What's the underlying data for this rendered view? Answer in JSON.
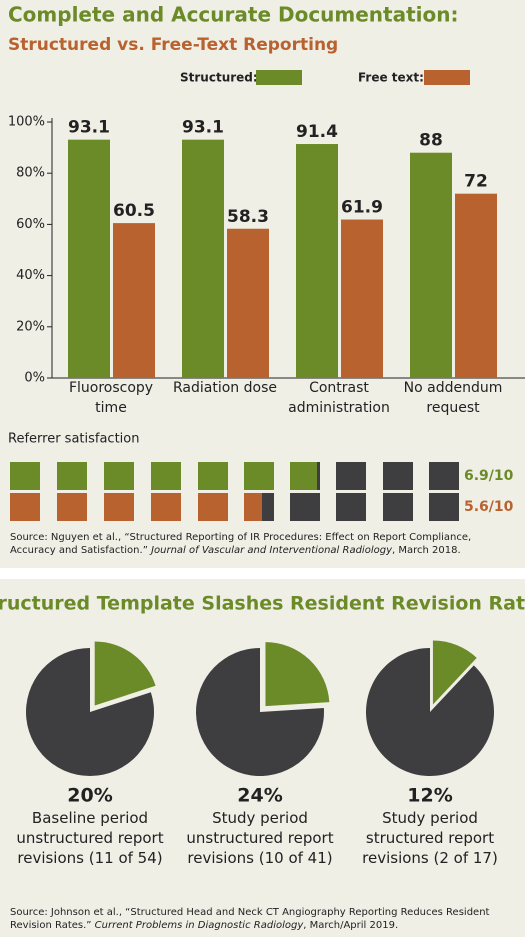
{
  "chart_data": [
    {
      "type": "bar",
      "title": "Complete and Accurate Documentation:",
      "subtitle": "Structured vs. Free-Text Reporting",
      "categories": [
        "Fluoroscopy time",
        "Radiation dose",
        "Contrast administration",
        "No addendum request"
      ],
      "series": [
        {
          "name": "Structured:",
          "color": "#6b8a28",
          "values": [
            93.1,
            93.1,
            91.4,
            88
          ]
        },
        {
          "name": "Free text:",
          "color": "#b8622f",
          "values": [
            60.5,
            58.3,
            61.9,
            72
          ]
        }
      ],
      "ylim": [
        0,
        100
      ],
      "yticks": [
        {
          "value": 0,
          "label": "0%"
        },
        {
          "value": 20,
          "label": "20%"
        },
        {
          "value": 40,
          "label": "40%"
        },
        {
          "value": 60,
          "label": "60%"
        },
        {
          "value": 80,
          "label": "80%"
        },
        {
          "value": 100,
          "label": "100%"
        }
      ],
      "grid": false,
      "legend": "top-right"
    },
    {
      "type": "waffle",
      "title": "Referrer satisfaction",
      "total": 10,
      "values": [
        6.9,
        5.6
      ],
      "value_labels": [
        "6.9/10",
        "5.6/10"
      ],
      "colors": [
        "#6b8a28",
        "#b8622f"
      ],
      "empty_color": "#3e3e40",
      "source": "Source: Nguyen et al., “Structured Reporting of IR Procedures: Effect on Report Compliance, Accuracy and Satisfaction.”",
      "source_journal": "Journal of Vascular and Interventional Radiology",
      "source_date": ", March 2018."
    },
    {
      "type": "pie",
      "title": "Structured Template Slashes Resident Revision Rates",
      "categories": [
        "Baseline period unstructured report revisions (11 of 54)",
        "Study period unstructured report revisions (10 of 41)",
        "Study period structured report revisions (2 of 17)"
      ],
      "values": [
        20,
        24,
        12
      ],
      "value_labels": [
        "20%",
        "24%",
        "12%"
      ],
      "color": "#6b8a28",
      "rest_color": "#3e3e40",
      "source": "Source: Johnson et al., “Structured Head and Neck CT Angiography Reporting Reduces Resident Revision Rates.”",
      "source_journal": "Current Problems in Diagnostic Radiology",
      "source_date": ", March/April 2019."
    }
  ]
}
